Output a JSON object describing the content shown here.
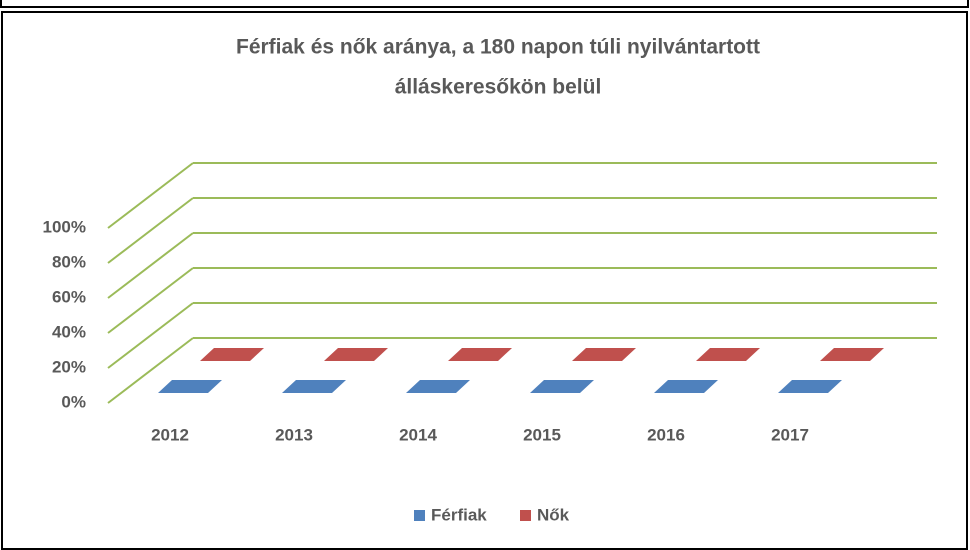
{
  "chart_data": {
    "type": "bar3d",
    "title": [
      "Férfiak és nők aránya, a 180 napon túli nyilvántartott",
      "álláskeresőkön belül"
    ],
    "categories": [
      "2012",
      "2013",
      "2014",
      "2015",
      "2016",
      "2017"
    ],
    "series": [
      {
        "name": "Férfiak",
        "color": "#4f81bd",
        "values": [
          0,
          0,
          0,
          0,
          0,
          0
        ]
      },
      {
        "name": "Nők",
        "color": "#c0504d",
        "values": [
          0,
          0,
          0,
          0,
          0,
          0
        ]
      }
    ],
    "ylim": [
      0,
      100
    ],
    "yticks": [
      {
        "value": 0,
        "label": "0%"
      },
      {
        "value": 20,
        "label": "20%"
      },
      {
        "value": 40,
        "label": "40%"
      },
      {
        "value": 60,
        "label": "60%"
      },
      {
        "value": 80,
        "label": "80%"
      },
      {
        "value": 100,
        "label": "100%"
      }
    ],
    "grid": true,
    "grid_color": "#9bbb59",
    "legend": "bottom"
  }
}
